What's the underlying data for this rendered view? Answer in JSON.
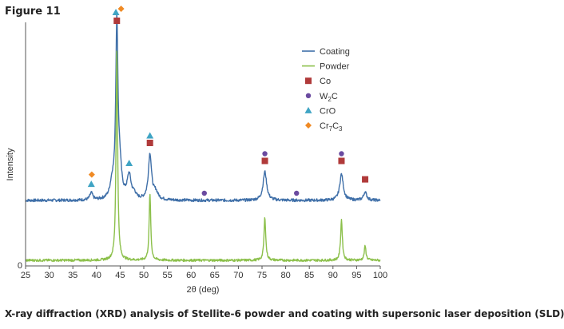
{
  "figure_label": "Figure 11",
  "caption": "X-ray diffraction (XRD) analysis of Stellite-6 powder and coating with supersonic laser deposition (SLD).",
  "chart_data": {
    "type": "line",
    "xlabel": "2θ (deg)",
    "ylabel": "Intensity",
    "xlim": [
      25,
      100
    ],
    "x_ticks": [
      25,
      30,
      35,
      40,
      45,
      50,
      55,
      60,
      65,
      70,
      75,
      80,
      85,
      90,
      95,
      100
    ],
    "y_tick_labels": [
      "0"
    ],
    "legend_position": "top-right",
    "colors": {
      "coating": "#3f6fa8",
      "powder": "#8cc04b",
      "co": "#b03a3a",
      "w2c": "#6a4aa0",
      "cro": "#3fa4c4",
      "cr7c3": "#f08a24"
    },
    "series": [
      {
        "name": "Coating",
        "baseline": 0.25,
        "noise": 0.006,
        "peaks": [
          {
            "x": 38.9,
            "h": 0.03,
            "w": 0.35
          },
          {
            "x": 43.3,
            "h": 0.06,
            "w": 0.5
          },
          {
            "x": 44.3,
            "h": 0.72,
            "w": 0.28
          },
          {
            "x": 44.9,
            "h": 0.12,
            "w": 0.45
          },
          {
            "x": 46.9,
            "h": 0.1,
            "w": 0.5
          },
          {
            "x": 48.0,
            "h": 0.02,
            "w": 0.4
          },
          {
            "x": 51.3,
            "h": 0.19,
            "w": 0.4
          },
          {
            "x": 52.5,
            "h": 0.03,
            "w": 0.6
          },
          {
            "x": 75.6,
            "h": 0.12,
            "w": 0.45
          },
          {
            "x": 91.8,
            "h": 0.11,
            "w": 0.45
          },
          {
            "x": 96.8,
            "h": 0.035,
            "w": 0.4
          }
        ]
      },
      {
        "name": "Powder",
        "baseline": 0.0,
        "noise": 0.005,
        "peaks": [
          {
            "x": 44.3,
            "h": 0.88,
            "w": 0.2
          },
          {
            "x": 51.3,
            "h": 0.28,
            "w": 0.2
          },
          {
            "x": 75.6,
            "h": 0.18,
            "w": 0.22
          },
          {
            "x": 91.8,
            "h": 0.17,
            "w": 0.22
          },
          {
            "x": 96.8,
            "h": 0.06,
            "w": 0.22
          }
        ]
      }
    ],
    "markers": [
      {
        "phase": "Cr7C3",
        "x": 39.0,
        "y": 0.358
      },
      {
        "phase": "CrO",
        "x": 38.9,
        "y": 0.318
      },
      {
        "phase": "Cr7C3",
        "x": 45.2,
        "y": 1.05
      },
      {
        "phase": "CrO",
        "x": 44.1,
        "y": 1.035
      },
      {
        "phase": "Co",
        "x": 44.3,
        "y": 1.0
      },
      {
        "phase": "CrO",
        "x": 46.9,
        "y": 0.405
      },
      {
        "phase": "CrO",
        "x": 51.3,
        "y": 0.52
      },
      {
        "phase": "Co",
        "x": 51.3,
        "y": 0.49
      },
      {
        "phase": "W2C",
        "x": 62.8,
        "y": 0.28
      },
      {
        "phase": "W2C",
        "x": 75.6,
        "y": 0.445
      },
      {
        "phase": "Co",
        "x": 75.6,
        "y": 0.415
      },
      {
        "phase": "W2C",
        "x": 82.3,
        "y": 0.28
      },
      {
        "phase": "W2C",
        "x": 91.8,
        "y": 0.445
      },
      {
        "phase": "Co",
        "x": 91.8,
        "y": 0.415
      },
      {
        "phase": "Co",
        "x": 96.8,
        "y": 0.338
      }
    ],
    "legend": [
      {
        "key": "coating",
        "kind": "line",
        "text": "Coating"
      },
      {
        "key": "powder",
        "kind": "line",
        "text": "Powder"
      },
      {
        "key": "co",
        "kind": "square",
        "text": "Co"
      },
      {
        "key": "w2c",
        "kind": "circle",
        "text": "W",
        "sub": "2",
        "text2": "C"
      },
      {
        "key": "cro",
        "kind": "triangle",
        "text": "CrO"
      },
      {
        "key": "cr7c3",
        "kind": "diamond",
        "text": "Cr",
        "sub": "7",
        "text2": "C",
        "sub2": "3"
      }
    ]
  }
}
